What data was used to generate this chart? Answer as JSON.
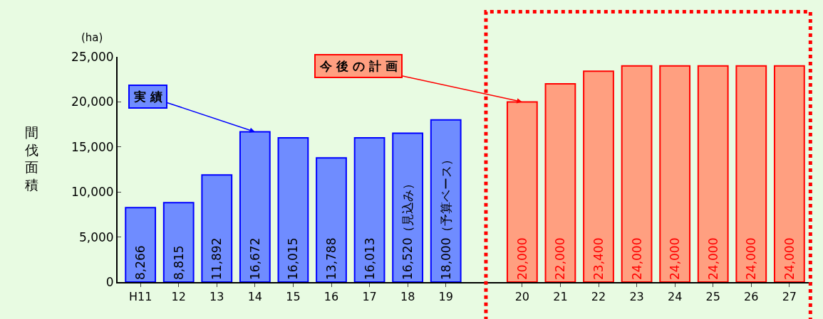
{
  "chart_data": {
    "type": "bar",
    "ylabel": "間伐面積",
    "annotations": [
      "(ha)"
    ],
    "categories": [
      "H11",
      "12",
      "13",
      "14",
      "15",
      "16",
      "17",
      "18",
      "19",
      null,
      "20",
      "21",
      "22",
      "23",
      "24",
      "25",
      "26",
      "27"
    ],
    "series": [
      {
        "name": "実 績",
        "color": "#6f8cff",
        "values": [
          8266,
          8815,
          11892,
          16672,
          16015,
          13788,
          16013,
          16520,
          18000,
          null,
          null,
          null,
          null,
          null,
          null,
          null,
          null,
          null
        ],
        "value_labels": [
          "8,266",
          "8,815",
          "11,892",
          "16,672",
          "16,015",
          "13,788",
          "16,013",
          "16,520（見込み）",
          "18,000（予算ベース）",
          null,
          null,
          null,
          null,
          null,
          null,
          null,
          null,
          null
        ]
      },
      {
        "name": "今 後 の 計 画",
        "color": "#ff9f80",
        "values": [
          null,
          null,
          null,
          null,
          null,
          null,
          null,
          null,
          null,
          null,
          20000,
          22000,
          23400,
          24000,
          24000,
          24000,
          24000,
          24000
        ],
        "value_labels": [
          null,
          null,
          null,
          null,
          null,
          null,
          null,
          null,
          null,
          null,
          "20,000",
          "22,000",
          "23,400",
          "24,000",
          "24,000",
          "24,000",
          "24,000",
          "24,000"
        ]
      }
    ],
    "ylim": [
      0,
      25000
    ],
    "yticks": [
      {
        "value": 0,
        "label": "0"
      },
      {
        "value": 5000,
        "label": "5,000"
      },
      {
        "value": 10000,
        "label": "10,000"
      },
      {
        "value": 15000,
        "label": "15,000"
      },
      {
        "value": 20000,
        "label": "20,000"
      },
      {
        "value": 25000,
        "label": "25,000"
      }
    ],
    "grid": false,
    "legend": false
  }
}
